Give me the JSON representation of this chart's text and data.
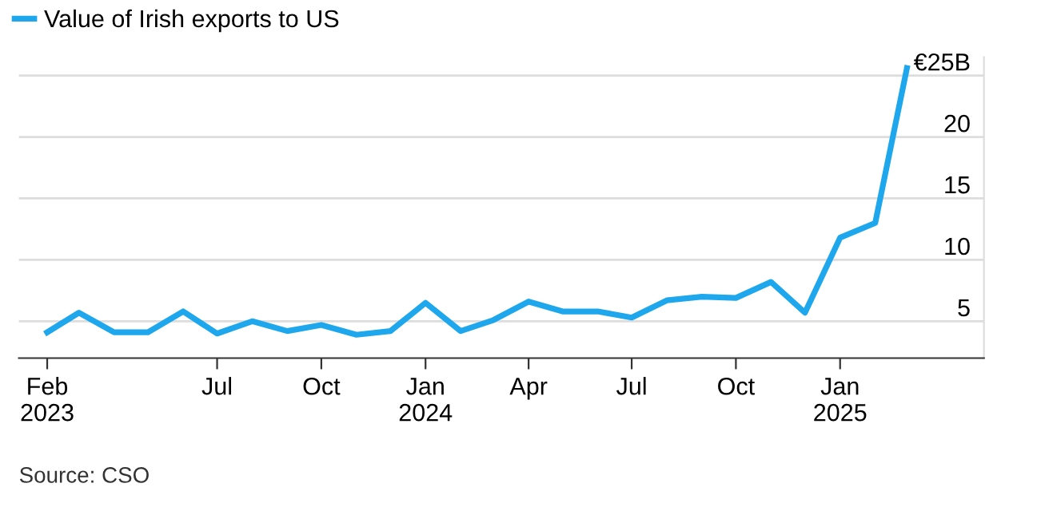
{
  "chart_data": {
    "type": "line",
    "x": [
      "2023-02",
      "2023-03",
      "2023-04",
      "2023-05",
      "2023-06",
      "2023-07",
      "2023-08",
      "2023-09",
      "2023-10",
      "2023-11",
      "2023-12",
      "2024-01",
      "2024-02",
      "2024-03",
      "2024-04",
      "2024-05",
      "2024-06",
      "2024-07",
      "2024-08",
      "2024-09",
      "2024-10",
      "2024-11",
      "2024-12",
      "2025-01",
      "2025-02",
      "2025-03"
    ],
    "series": [
      {
        "name": "Value of Irish exports to US",
        "color": "#1ea7ec",
        "values": [
          4.1,
          5.7,
          4.1,
          4.1,
          5.8,
          4.0,
          5.0,
          4.2,
          4.7,
          3.9,
          4.2,
          6.5,
          4.2,
          5.1,
          6.6,
          5.8,
          5.8,
          5.3,
          6.7,
          7.0,
          6.9,
          8.2,
          5.7,
          11.8,
          13.0,
          25.6
        ]
      }
    ],
    "xlim": [
      "2023-01-07",
      "2025-05-08"
    ],
    "xticks": [
      {
        "value": "2023-02",
        "label": "Feb\n2023"
      },
      {
        "value": "2023-07",
        "label": "Jul"
      },
      {
        "value": "2023-10",
        "label": "Oct"
      },
      {
        "value": "2024-01",
        "label": "Jan\n2024"
      },
      {
        "value": "2024-04",
        "label": "Apr"
      },
      {
        "value": "2024-07",
        "label": "Jul"
      },
      {
        "value": "2024-10",
        "label": "Oct"
      },
      {
        "value": "2025-01",
        "label": "Jan\n2025"
      }
    ],
    "ylim": [
      2,
      26.5
    ],
    "yticks": [
      5,
      10,
      15,
      20,
      {
        "value": 25,
        "label": "€25B"
      }
    ],
    "grid": "y",
    "legend": "top left",
    "marker": "none",
    "line_style": "solid",
    "annotations": [
      "Source: CSO"
    ]
  }
}
